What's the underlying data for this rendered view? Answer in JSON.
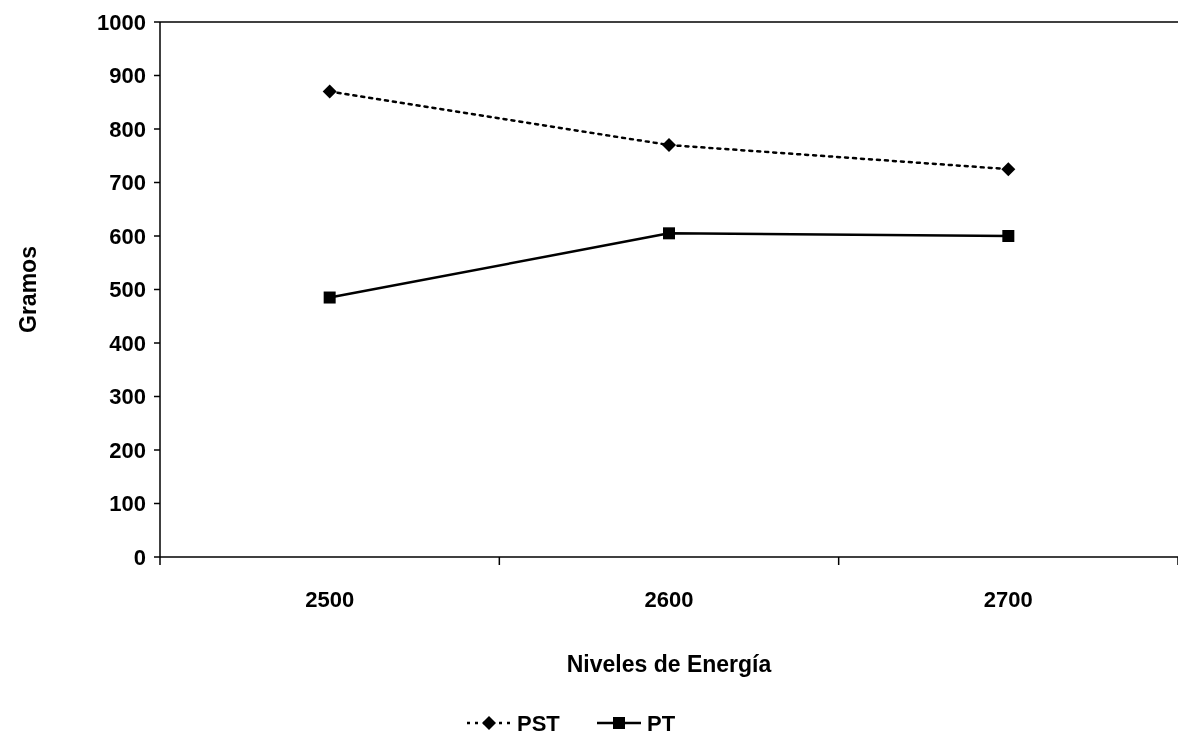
{
  "chart_data": {
    "type": "line",
    "xlabel": "Niveles de Energía",
    "ylabel": "Gramos",
    "categories": [
      "2500",
      "2600",
      "2700"
    ],
    "ylim": [
      0,
      1000
    ],
    "yticks": [
      0,
      100,
      200,
      300,
      400,
      500,
      600,
      700,
      800,
      900,
      1000
    ],
    "legend": "bottom",
    "series": [
      {
        "name": "PST",
        "color": "#000000",
        "marker": "diamond",
        "line_style": "dotted",
        "values": [
          870,
          770,
          725
        ]
      },
      {
        "name": "PT",
        "color": "#000000",
        "marker": "square",
        "line_style": "solid",
        "values": [
          485,
          605,
          600
        ]
      }
    ]
  }
}
